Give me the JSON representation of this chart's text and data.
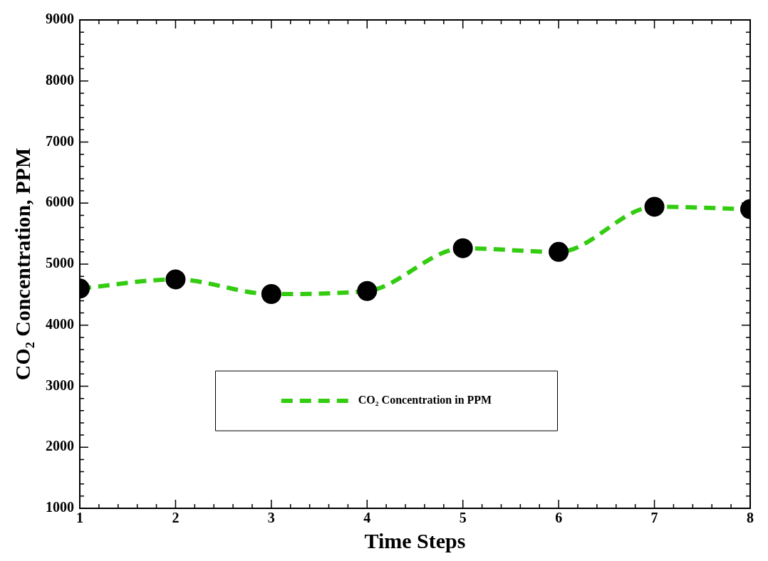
{
  "chart_data": {
    "type": "line",
    "xlabel": "Time Steps",
    "ylabel": "CO₂ Concentration, PPM",
    "x": [
      1,
      2,
      3,
      4,
      5,
      6,
      7,
      8
    ],
    "series": [
      {
        "name": "CO₂ Concentration in PPM",
        "color": "#33cc11",
        "values": [
          4600,
          4750,
          4510,
          4560,
          5260,
          5200,
          5940,
          5900
        ]
      }
    ],
    "xlim": [
      1,
      8
    ],
    "xticks": [
      1,
      2,
      3,
      4,
      5,
      6,
      7,
      8
    ],
    "ylim": [
      1000,
      9000
    ],
    "yticks": [
      1000,
      2000,
      3000,
      4000,
      5000,
      6000,
      7000,
      8000,
      9000
    ],
    "marker": "circle",
    "line_style": "dashed",
    "legend": "bottom",
    "grid": false
  }
}
